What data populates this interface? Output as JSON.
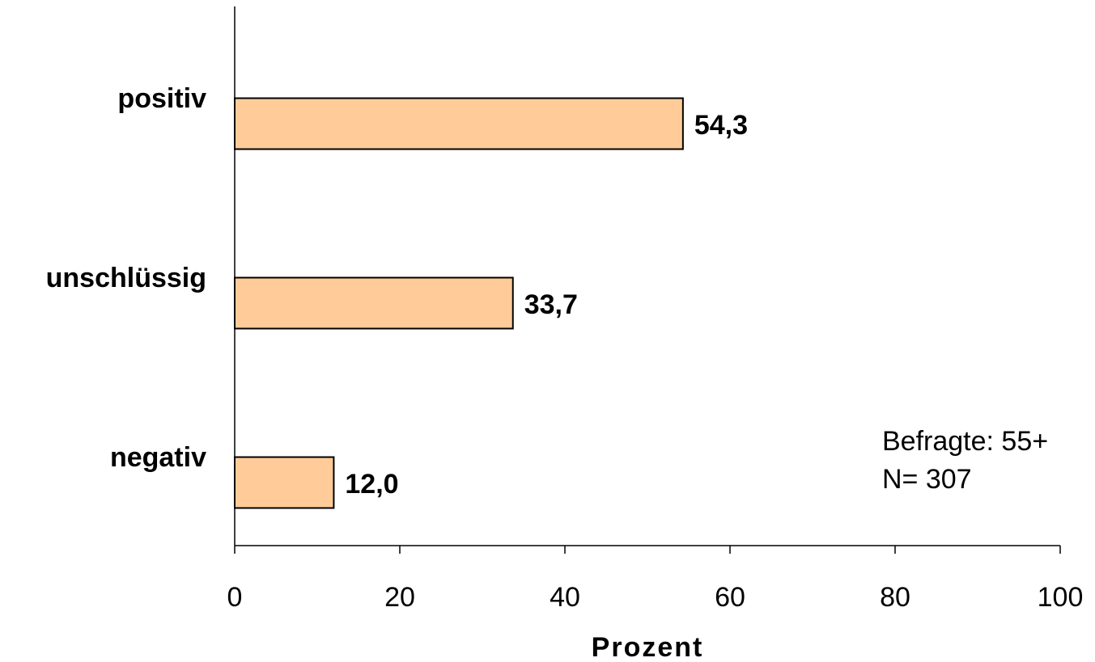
{
  "chart_data": {
    "type": "bar",
    "orientation": "horizontal",
    "categories": [
      "positiv",
      "unschlüssig",
      "negativ"
    ],
    "values": [
      54.3,
      33.7,
      12.0
    ],
    "value_labels": [
      "54,3",
      "33,7",
      "12,0"
    ],
    "xlabel": "Prozent",
    "ylabel": "",
    "xlim": [
      0,
      100
    ],
    "xticks": [
      0,
      20,
      40,
      60,
      80,
      100
    ],
    "xtick_labels": [
      "0",
      "20",
      "40",
      "60",
      "80",
      "100"
    ],
    "grid": false,
    "bar_color": "#FFCC99",
    "bar_edge_color": "#000000",
    "annotations": [
      "Befragte: 55+",
      "N= 307"
    ]
  }
}
